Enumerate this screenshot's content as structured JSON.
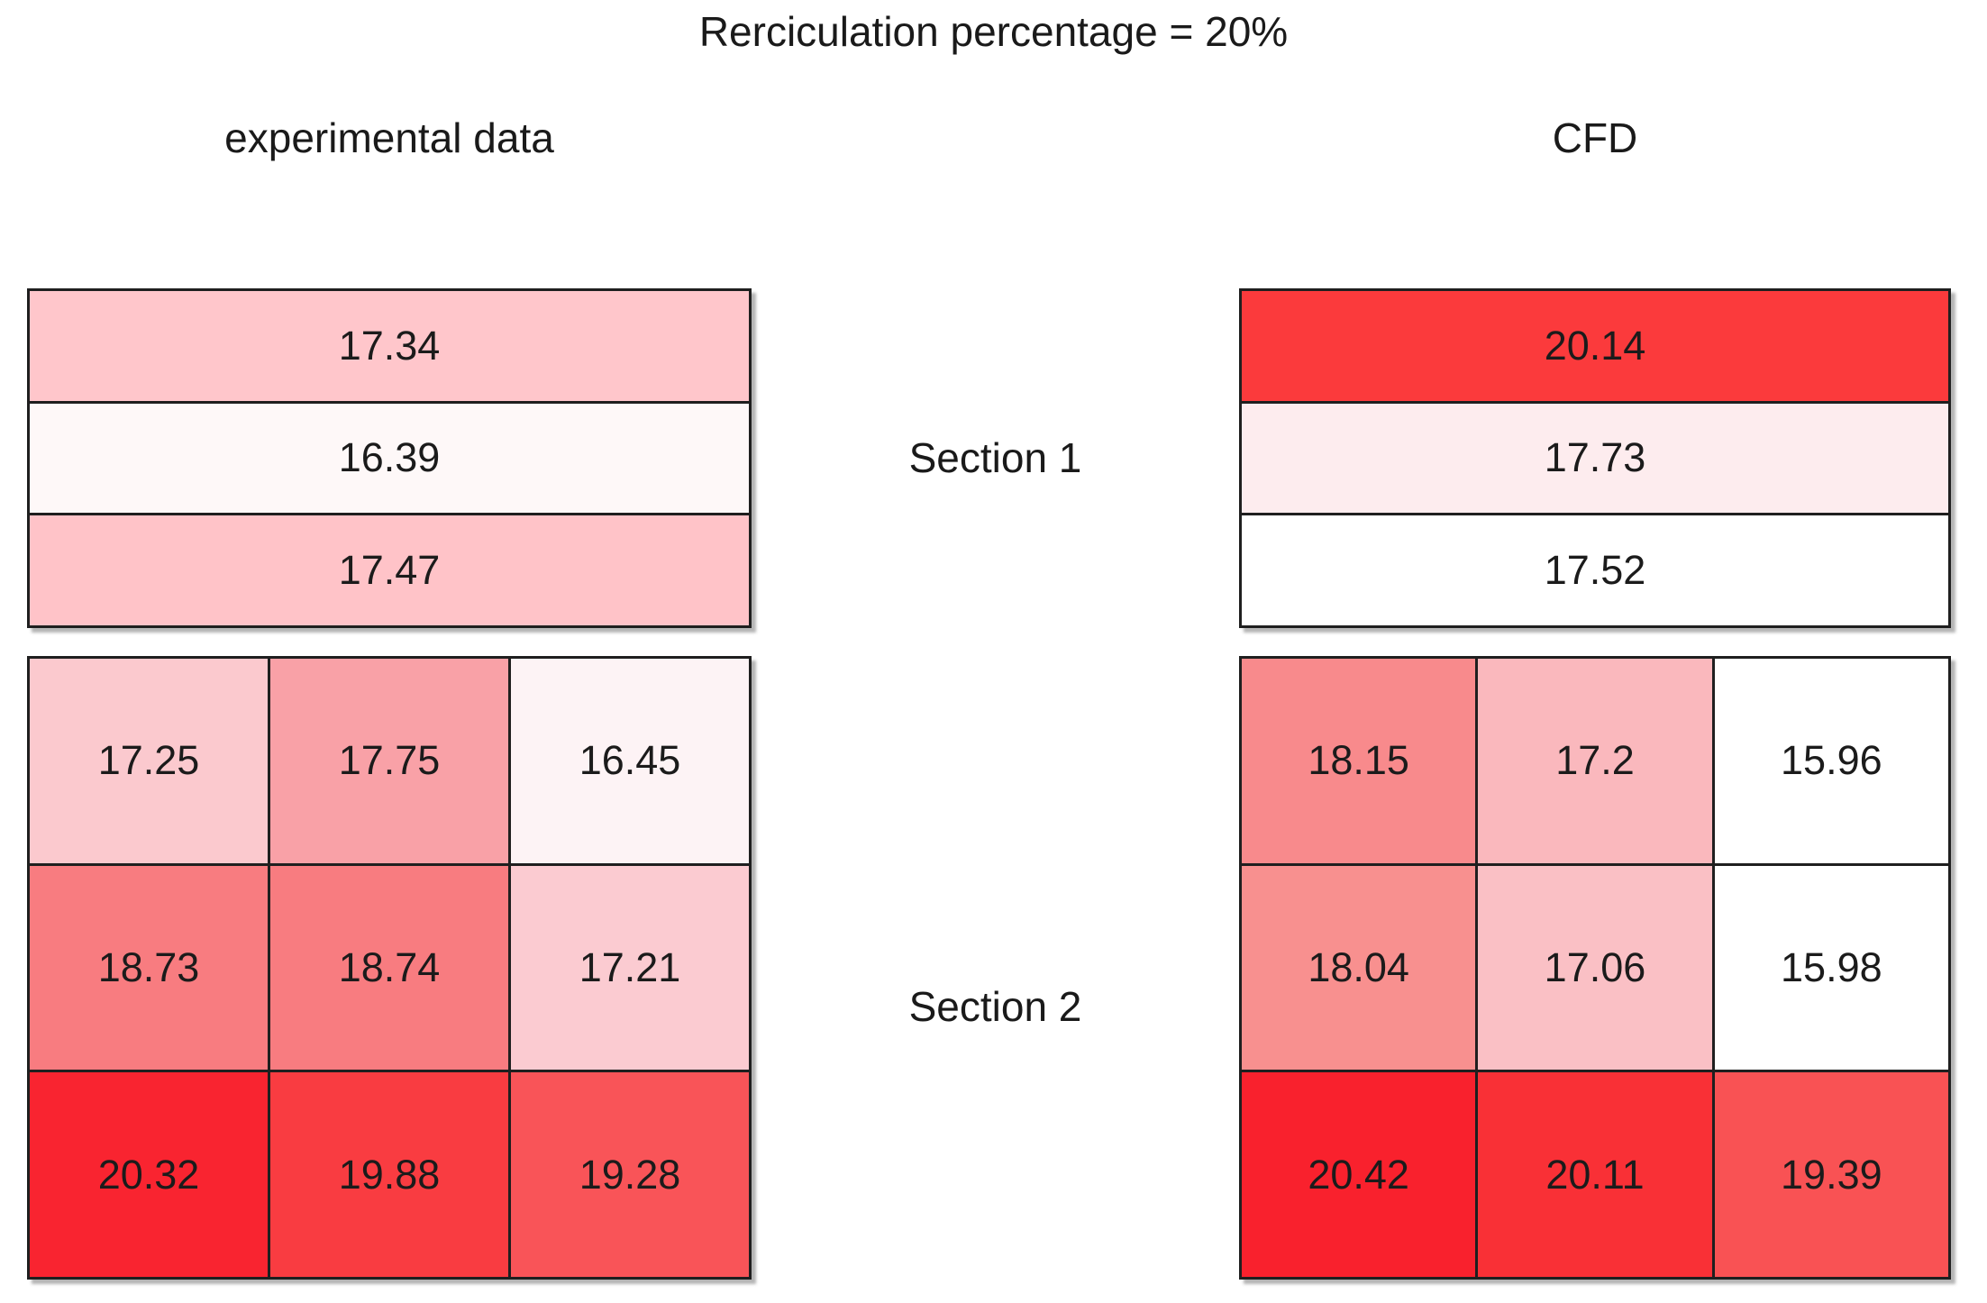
{
  "title": "Rerciculation percentage = 20%",
  "columns": [
    {
      "label": "experimental data"
    },
    {
      "label": "CFD"
    }
  ],
  "sections": [
    {
      "label": "Section 1"
    },
    {
      "label": "Section 2"
    }
  ],
  "panels": {
    "exp_section1": {
      "cells": [
        {
          "value": "17.34",
          "color": "#FFC6CB"
        },
        {
          "value": "16.39",
          "color": "#FEF8F8"
        },
        {
          "value": "17.47",
          "color": "#FFC3C8"
        }
      ]
    },
    "cfd_section1": {
      "cells": [
        {
          "value": "20.14",
          "color": "#FB3A3C"
        },
        {
          "value": "17.73",
          "color": "#FDECEE"
        },
        {
          "value": "17.52",
          "color": "#FFFFFF"
        }
      ]
    },
    "exp_section2": {
      "cells": [
        {
          "value": "17.25",
          "color": "#FBC9CE"
        },
        {
          "value": "17.75",
          "color": "#F9A1A7"
        },
        {
          "value": "16.45",
          "color": "#FDF3F5"
        },
        {
          "value": "18.73",
          "color": "#F87C80"
        },
        {
          "value": "18.74",
          "color": "#F87C80"
        },
        {
          "value": "17.21",
          "color": "#FBCBD1"
        },
        {
          "value": "20.32",
          "color": "#F92430"
        },
        {
          "value": "19.88",
          "color": "#F93C41"
        },
        {
          "value": "19.28",
          "color": "#F95458"
        }
      ]
    },
    "cfd_section2": {
      "cells": [
        {
          "value": "18.15",
          "color": "#F88A8C"
        },
        {
          "value": "17.2",
          "color": "#FAB8BD"
        },
        {
          "value": "15.96",
          "color": "#FFFFFF"
        },
        {
          "value": "18.04",
          "color": "#F8908F"
        },
        {
          "value": "17.06",
          "color": "#FAC0C5"
        },
        {
          "value": "15.98",
          "color": "#FFFFFF"
        },
        {
          "value": "20.42",
          "color": "#F9212D"
        },
        {
          "value": "20.11",
          "color": "#F93036"
        },
        {
          "value": "19.39",
          "color": "#F95254"
        }
      ]
    }
  },
  "chart_data": {
    "type": "heatmap",
    "title": "Rerciculation percentage = 20%",
    "colormap": "white-to-red, normalized independently within each panel",
    "panels": [
      {
        "name": "experimental data - Section 1",
        "layout": "3 rows x 1 col",
        "values": [
          [
            17.34
          ],
          [
            16.39
          ],
          [
            17.47
          ]
        ]
      },
      {
        "name": "CFD - Section 1",
        "layout": "3 rows x 1 col",
        "values": [
          [
            20.14
          ],
          [
            17.73
          ],
          [
            17.52
          ]
        ]
      },
      {
        "name": "experimental data - Section 2",
        "layout": "3 rows x 3 cols",
        "values": [
          [
            17.25,
            17.75,
            16.45
          ],
          [
            18.73,
            18.74,
            17.21
          ],
          [
            20.32,
            19.88,
            19.28
          ]
        ]
      },
      {
        "name": "CFD - Section 2",
        "layout": "3 rows x 3 cols",
        "values": [
          [
            18.15,
            17.2,
            15.96
          ],
          [
            18.04,
            17.06,
            15.98
          ],
          [
            20.42,
            20.11,
            19.39
          ]
        ]
      }
    ]
  }
}
